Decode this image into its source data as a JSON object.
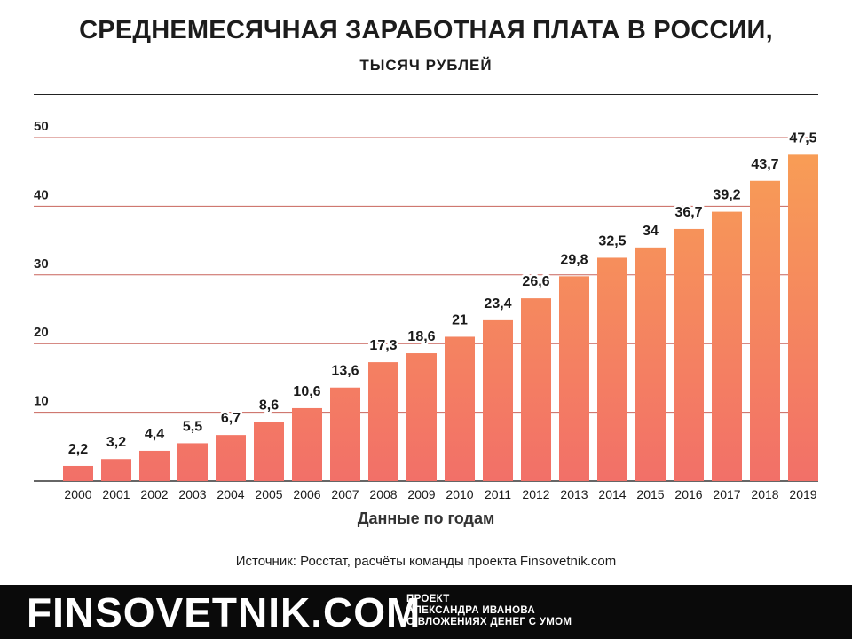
{
  "header": {
    "title": "СРЕДНЕМЕСЯЧНАЯ ЗАРАБОТНАЯ ПЛАТА В РОССИИ,",
    "subtitle": "ТЫСЯЧ РУБЛЕЙ"
  },
  "chart_data": {
    "type": "bar",
    "title": "СРЕДНЕМЕСЯЧНАЯ ЗАРАБОТНАЯ ПЛАТА В РОССИИ,",
    "subtitle": "ТЫСЯЧ РУБЛЕЙ",
    "xlabel": "Данные по годам",
    "ylabel": "",
    "categories": [
      "2000",
      "2001",
      "2002",
      "2003",
      "2004",
      "2005",
      "2006",
      "2007",
      "2008",
      "2009",
      "2010",
      "2011",
      "2012",
      "2013",
      "2014",
      "2015",
      "2016",
      "2017",
      "2018",
      "2019"
    ],
    "values": [
      2.2,
      3.2,
      4.4,
      5.5,
      6.7,
      8.6,
      10.6,
      13.6,
      17.3,
      18.6,
      21,
      23.4,
      26.6,
      29.8,
      32.5,
      34,
      36.7,
      39.2,
      43.7,
      47.5
    ],
    "value_labels": [
      "2,2",
      "3,2",
      "4,4",
      "5,5",
      "6,7",
      "8,6",
      "10,6",
      "13,6",
      "17,3",
      "18,6",
      "21",
      "23,4",
      "26,6",
      "29,8",
      "32,5",
      "34",
      "36,7",
      "39,2",
      "43,7",
      "47,5"
    ],
    "yticks": [
      10,
      20,
      30,
      40,
      50
    ],
    "ylim": [
      0,
      50
    ],
    "grid": true,
    "legend": "none",
    "colors": {
      "bar_top": "#f89f55",
      "bar_bottom": "#f27068",
      "grid": "#c8645c",
      "axis": "#333333"
    }
  },
  "source": "Источник: Росстат, расчёты команды проекта Finsovetnik.com",
  "footer": {
    "brand": "FINSOVETNIK.COM",
    "tagline": [
      "ПРОЕКТ",
      "АЛЕКСАНДРА ИВАНОВА",
      "О ВЛОЖЕНИЯХ ДЕНЕГ С УМОМ"
    ]
  }
}
